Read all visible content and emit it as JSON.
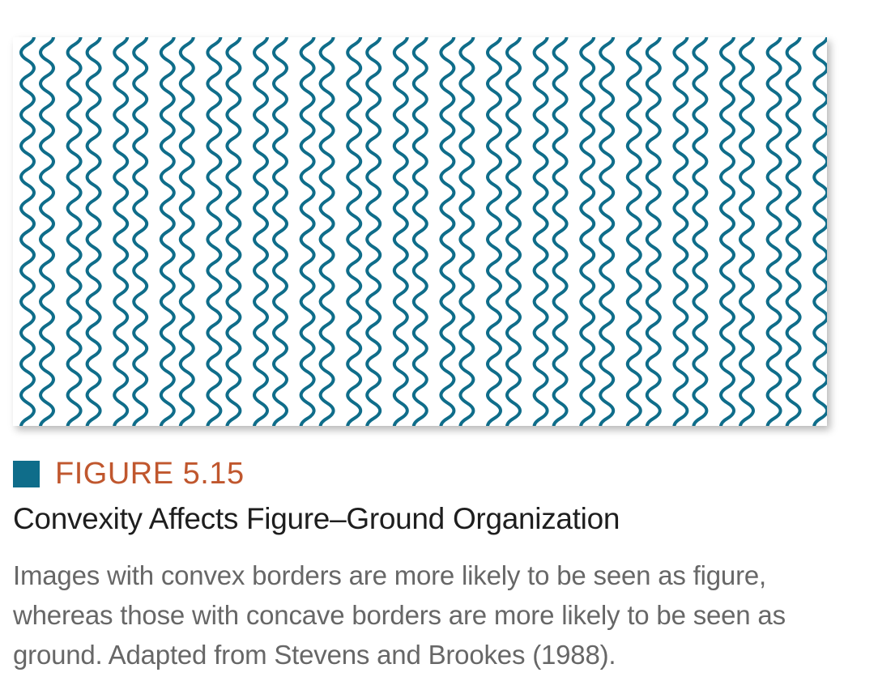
{
  "figure": {
    "number": "FIGURE 5.15",
    "title": "Convexity Affects Figure–Ground Organization",
    "caption": "Images with convex borders are more likely to be seen as figure, whereas those with concave borders are more likely to be seen as ground. Adapted from Stevens and Brookes (1988)."
  },
  "colors": {
    "accent": "#0f6d8a",
    "figure_label": "#c0572e",
    "title_text": "#1e1e1e",
    "caption_text": "#676767",
    "background": "#ffffff"
  },
  "illustration": {
    "description_icon": "wavy-lines-pattern",
    "wavy_line_pairs": 18,
    "waves_per_line": 13
  }
}
